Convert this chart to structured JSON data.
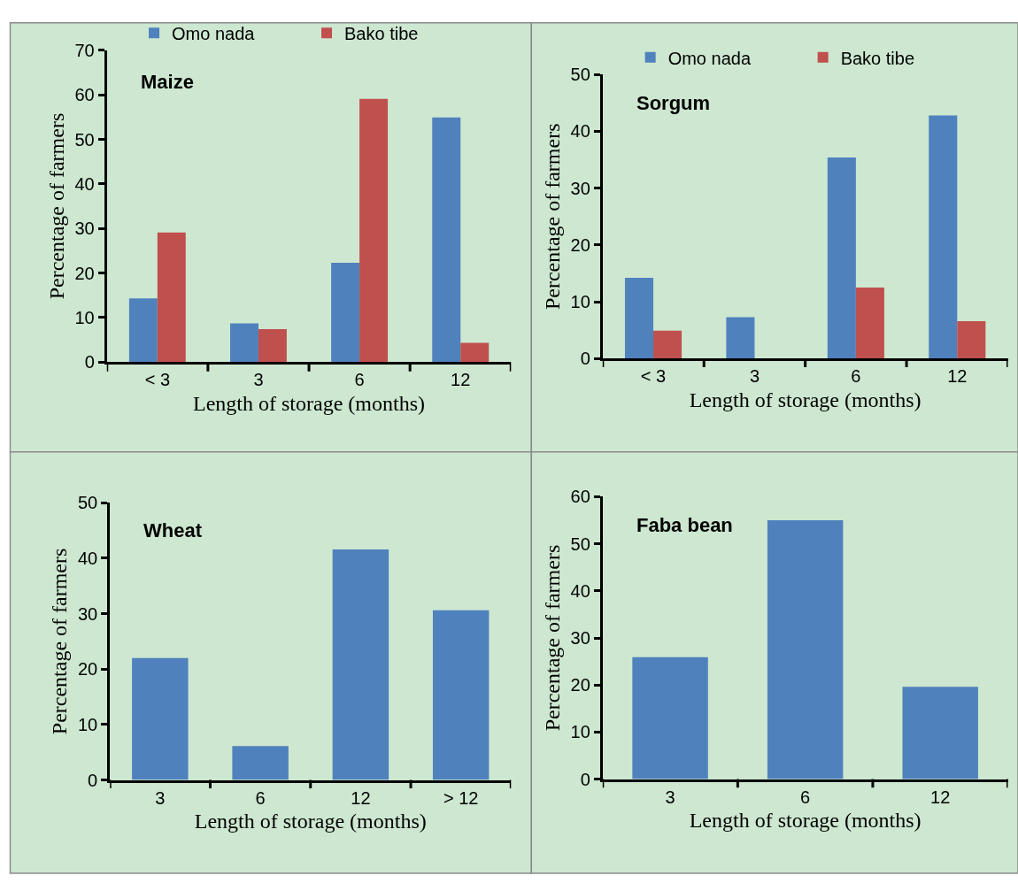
{
  "chart_data": [
    {
      "type": "bar",
      "title": "Maize",
      "xlabel": "Length of storage (months)",
      "ylabel": "Percentage of farmers",
      "categories": [
        "< 3",
        "3",
        "6",
        "12"
      ],
      "series": [
        {
          "name": "Omo nada",
          "color": "#4f81bd",
          "values": [
            14.3,
            8.7,
            22.3,
            54.9
          ]
        },
        {
          "name": "Bako tibe",
          "color": "#c0504d",
          "values": [
            29.1,
            7.4,
            59.1,
            4.3
          ]
        }
      ],
      "ylim": [
        0,
        70
      ],
      "yticks": [
        0,
        10,
        20,
        30,
        40,
        50,
        60,
        70
      ],
      "legend": "top"
    },
    {
      "type": "bar",
      "title": "Sorgum",
      "xlabel": "Length of storage (months)",
      "ylabel": "Percentage of farmers",
      "categories": [
        "< 3",
        "3",
        "6",
        "12"
      ],
      "series": [
        {
          "name": "Omo nada",
          "color": "#4f81bd",
          "values": [
            14.2,
            7.3,
            35.4,
            42.8
          ]
        },
        {
          "name": "Bako tibe",
          "color": "#c0504d",
          "values": [
            4.9,
            0,
            12.5,
            6.6
          ]
        }
      ],
      "ylim": [
        0,
        50
      ],
      "yticks": [
        0,
        10,
        20,
        30,
        40,
        50
      ],
      "legend": "top"
    },
    {
      "type": "bar",
      "title": "Wheat",
      "xlabel": "Length of storage (months)",
      "ylabel": "Percentage of farmers",
      "categories": [
        "3",
        "6",
        "12",
        "> 12"
      ],
      "series": [
        {
          "color": "#4f81bd",
          "values": [
            22.0,
            6.1,
            41.6,
            30.6
          ]
        }
      ],
      "ylim": [
        0,
        50
      ],
      "yticks": [
        0,
        10,
        20,
        30,
        40,
        50
      ]
    },
    {
      "type": "bar",
      "title": "Faba bean",
      "xlabel": "Length of storage (months)",
      "ylabel": "Percentage of farmers",
      "categories": [
        "3",
        "6",
        "12"
      ],
      "series": [
        {
          "color": "#4f81bd",
          "values": [
            25.9,
            55.0,
            19.6
          ]
        }
      ],
      "ylim": [
        0,
        60
      ],
      "yticks": [
        0,
        10,
        20,
        30,
        40,
        50,
        60
      ]
    }
  ]
}
